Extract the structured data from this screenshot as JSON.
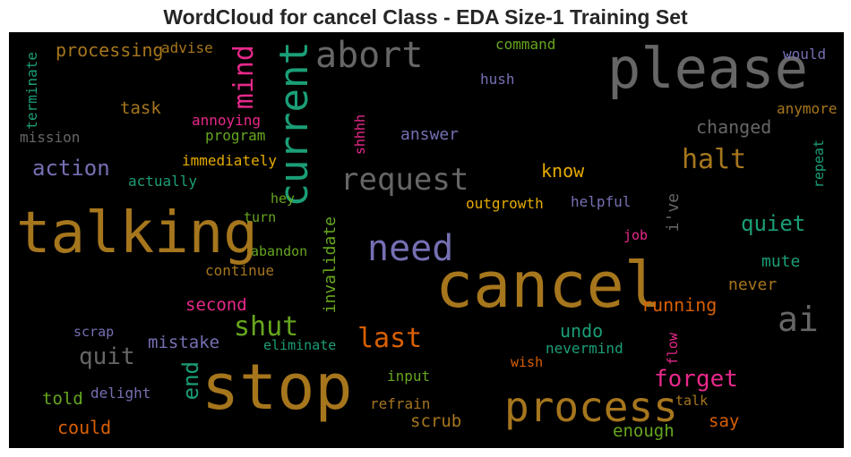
{
  "title": "WordCloud for cancel Class - EDA Size-1 Training Set",
  "words": [
    {
      "t": "please",
      "c": "#666666"
    },
    {
      "t": "talking",
      "c": "#a6761d"
    },
    {
      "t": "cancel",
      "c": "#a6761d"
    },
    {
      "t": "stop",
      "c": "#a6761d"
    },
    {
      "t": "process",
      "c": "#a6761d"
    },
    {
      "t": "current",
      "c": "#1b9e77"
    },
    {
      "t": "abort",
      "c": "#666666"
    },
    {
      "t": "need",
      "c": "#7570b3"
    },
    {
      "t": "request",
      "c": "#666666"
    },
    {
      "t": "mind",
      "c": "#e7298a"
    },
    {
      "t": "halt",
      "c": "#a6761d"
    },
    {
      "t": "ai",
      "c": "#666666"
    },
    {
      "t": "shut",
      "c": "#66a61e"
    },
    {
      "t": "last",
      "c": "#d95f02"
    },
    {
      "t": "forget",
      "c": "#e7298a"
    },
    {
      "t": "quit",
      "c": "#666666"
    },
    {
      "t": "action",
      "c": "#7570b3"
    },
    {
      "t": "end",
      "c": "#1b9e77"
    },
    {
      "t": "quiet",
      "c": "#1b9e77"
    },
    {
      "t": "processing",
      "c": "#a6761d"
    },
    {
      "t": "changed",
      "c": "#666666"
    },
    {
      "t": "know",
      "c": "#e6ab02"
    },
    {
      "t": "second",
      "c": "#e7298a"
    },
    {
      "t": "mistake",
      "c": "#7570b3"
    },
    {
      "t": "running",
      "c": "#d95f02"
    },
    {
      "t": "undo",
      "c": "#1b9e77"
    },
    {
      "t": "invalidate",
      "c": "#66a61e"
    },
    {
      "t": "task",
      "c": "#a6761d"
    },
    {
      "t": "answer",
      "c": "#7570b3"
    },
    {
      "t": "mute",
      "c": "#1b9e77"
    },
    {
      "t": "never",
      "c": "#a6761d"
    },
    {
      "t": "told",
      "c": "#66a61e"
    },
    {
      "t": "could",
      "c": "#d95f02"
    },
    {
      "t": "scrub",
      "c": "#a6761d"
    },
    {
      "t": "enough",
      "c": "#66a61e"
    },
    {
      "t": "say",
      "c": "#d95f02"
    },
    {
      "t": "i've",
      "c": "#666666"
    },
    {
      "t": "advise",
      "c": "#a6761d"
    },
    {
      "t": "command",
      "c": "#66a61e"
    },
    {
      "t": "hush",
      "c": "#7570b3"
    },
    {
      "t": "would",
      "c": "#7570b3"
    },
    {
      "t": "anymore",
      "c": "#a6761d"
    },
    {
      "t": "terminate",
      "c": "#1b9e77"
    },
    {
      "t": "mission",
      "c": "#666666"
    },
    {
      "t": "annoying",
      "c": "#e7298a"
    },
    {
      "t": "program",
      "c": "#66a61e"
    },
    {
      "t": "shhhh",
      "c": "#e7298a"
    },
    {
      "t": "immediately",
      "c": "#e6ab02"
    },
    {
      "t": "actually",
      "c": "#1b9e77"
    },
    {
      "t": "hey",
      "c": "#66a61e"
    },
    {
      "t": "turn",
      "c": "#66a61e"
    },
    {
      "t": "outgrowth",
      "c": "#e6ab02"
    },
    {
      "t": "helpful",
      "c": "#7570b3"
    },
    {
      "t": "repeat",
      "c": "#1b9e77"
    },
    {
      "t": "abandon",
      "c": "#66a61e"
    },
    {
      "t": "continue",
      "c": "#a6761d"
    },
    {
      "t": "job",
      "c": "#e7298a"
    },
    {
      "t": "scrap",
      "c": "#7570b3"
    },
    {
      "t": "eliminate",
      "c": "#1b9e77"
    },
    {
      "t": "nevermind",
      "c": "#1b9e77"
    },
    {
      "t": "flow",
      "c": "#e7298a"
    },
    {
      "t": "wish",
      "c": "#d95f02"
    },
    {
      "t": "input",
      "c": "#66a61e"
    },
    {
      "t": "delight",
      "c": "#7570b3"
    },
    {
      "t": "refrain",
      "c": "#a6761d"
    },
    {
      "t": "talk",
      "c": "#a6761d"
    }
  ]
}
